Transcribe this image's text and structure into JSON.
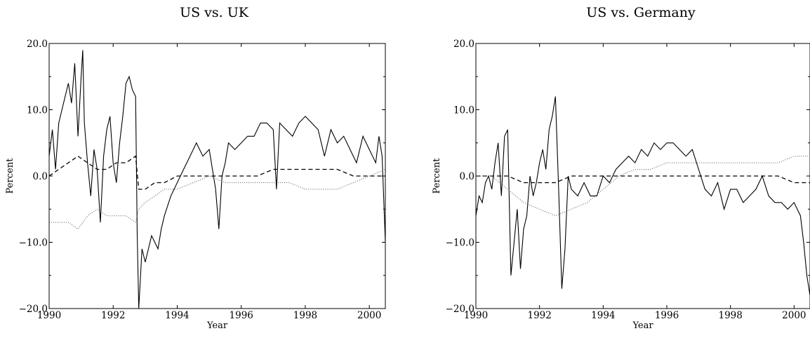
{
  "chart_data": [
    {
      "type": "line",
      "title": "US vs. UK",
      "xlabel": "Year",
      "ylabel": "Percent",
      "xlim": [
        1990,
        2000.5
      ],
      "ylim": [
        -20,
        20
      ],
      "xticks": [
        1990,
        1992,
        1994,
        1996,
        1998,
        2000
      ],
      "xtick_labels": [
        "1990",
        "1992",
        "1994",
        "1996",
        "1998",
        "2000"
      ],
      "yticks": [
        -20,
        -10,
        0,
        10,
        20
      ],
      "ytick_labels": [
        "−20.0",
        "−10.0",
        "0.0",
        "10.0",
        "20.0"
      ],
      "grid": false,
      "series": [
        {
          "style": "solid",
          "x": [
            1990.0,
            1990.1,
            1990.2,
            1990.3,
            1990.5,
            1990.6,
            1990.7,
            1990.8,
            1990.9,
            1991.0,
            1991.05,
            1991.1,
            1991.2,
            1991.3,
            1991.4,
            1991.5,
            1991.6,
            1991.7,
            1991.8,
            1991.9,
            1992.0,
            1992.1,
            1992.2,
            1992.3,
            1992.4,
            1992.5,
            1992.6,
            1992.7,
            1992.75,
            1992.8,
            1992.9,
            1993.0,
            1993.2,
            1993.4,
            1993.5,
            1993.6,
            1993.8,
            1994.0,
            1994.2,
            1994.4,
            1994.6,
            1994.8,
            1995.0,
            1995.2,
            1995.3,
            1995.4,
            1995.5,
            1995.6,
            1995.8,
            1996.0,
            1996.2,
            1996.4,
            1996.6,
            1996.8,
            1997.0,
            1997.1,
            1997.2,
            1997.4,
            1997.6,
            1997.8,
            1998.0,
            1998.2,
            1998.4,
            1998.6,
            1998.8,
            1999.0,
            1999.2,
            1999.4,
            1999.6,
            1999.8,
            2000.0,
            2000.2,
            2000.3,
            2000.4,
            2000.5
          ],
          "y": [
            3,
            7,
            1,
            8,
            12,
            14,
            11,
            17,
            6,
            15,
            19,
            8,
            2,
            -3,
            4,
            1,
            -7,
            3,
            7,
            9,
            2,
            -1,
            5,
            9,
            14,
            15,
            13,
            12,
            -9,
            -20,
            -11,
            -13,
            -9,
            -11,
            -8,
            -6,
            -3,
            -1,
            1,
            3,
            5,
            3,
            4,
            -2,
            -8,
            0,
            2,
            5,
            4,
            5,
            6,
            6,
            8,
            8,
            7,
            -2,
            8,
            7,
            6,
            8,
            9,
            8,
            7,
            3,
            7,
            5,
            6,
            4,
            2,
            6,
            4,
            2,
            6,
            3,
            -10
          ]
        },
        {
          "style": "dashed",
          "x": [
            1990.0,
            1990.3,
            1990.6,
            1990.9,
            1991.2,
            1991.5,
            1991.8,
            1992.1,
            1992.4,
            1992.7,
            1992.8,
            1993.0,
            1993.3,
            1993.6,
            1994.0,
            1994.5,
            1995.0,
            1995.5,
            1996.0,
            1996.5,
            1997.0,
            1997.5,
            1998.0,
            1998.5,
            1999.0,
            1999.5,
            2000.0,
            2000.5
          ],
          "y": [
            0,
            1,
            2,
            3,
            2,
            1,
            1,
            2,
            2,
            3,
            -2,
            -2,
            -1,
            -1,
            0,
            0,
            0,
            0,
            0,
            0,
            1,
            1,
            1,
            1,
            1,
            0,
            0,
            0
          ]
        },
        {
          "style": "dotted",
          "x": [
            1990.0,
            1990.3,
            1990.6,
            1990.9,
            1991.2,
            1991.5,
            1991.8,
            1992.1,
            1992.4,
            1992.7,
            1992.8,
            1993.0,
            1993.3,
            1993.6,
            1994.0,
            1994.5,
            1995.0,
            1995.5,
            1996.0,
            1996.5,
            1997.0,
            1997.5,
            1998.0,
            1998.5,
            1999.0,
            1999.5,
            2000.0,
            2000.5
          ],
          "y": [
            -7,
            -7,
            -7,
            -8,
            -6,
            -5,
            -6,
            -6,
            -6,
            -7,
            -5,
            -4,
            -3,
            -2,
            -2,
            -1,
            0,
            -1,
            -1,
            -1,
            -1,
            -1,
            -2,
            -2,
            -2,
            -1,
            0,
            1
          ]
        }
      ]
    },
    {
      "type": "line",
      "title": "US vs. Germany",
      "xlabel": "Year",
      "ylabel": "Percent",
      "xlim": [
        1990,
        2000.5
      ],
      "ylim": [
        -20,
        20
      ],
      "xticks": [
        1990,
        1992,
        1994,
        1996,
        1998,
        2000
      ],
      "xtick_labels": [
        "1990",
        "1992",
        "1994",
        "1996",
        "1998",
        "2000"
      ],
      "yticks": [
        -20,
        -10,
        0,
        10,
        20
      ],
      "ytick_labels": [
        "−20.0",
        "−10.0",
        "0.0",
        "10.0",
        "20.0"
      ],
      "grid": false,
      "series": [
        {
          "style": "solid",
          "x": [
            1990.0,
            1990.1,
            1990.2,
            1990.3,
            1990.4,
            1990.5,
            1990.6,
            1990.7,
            1990.8,
            1990.9,
            1991.0,
            1991.1,
            1991.2,
            1991.3,
            1991.4,
            1991.5,
            1991.6,
            1991.7,
            1991.8,
            1991.9,
            1992.0,
            1992.1,
            1992.2,
            1992.3,
            1992.4,
            1992.5,
            1992.6,
            1992.7,
            1992.8,
            1992.9,
            1993.0,
            1993.2,
            1993.4,
            1993.6,
            1993.8,
            1994.0,
            1994.2,
            1994.4,
            1994.6,
            1994.8,
            1995.0,
            1995.2,
            1995.4,
            1995.6,
            1995.8,
            1996.0,
            1996.2,
            1996.4,
            1996.6,
            1996.8,
            1997.0,
            1997.2,
            1997.4,
            1997.6,
            1997.8,
            1998.0,
            1998.2,
            1998.4,
            1998.6,
            1998.8,
            1999.0,
            1999.2,
            1999.4,
            1999.6,
            1999.8,
            2000.0,
            2000.2,
            2000.3,
            2000.4,
            2000.5
          ],
          "y": [
            -6,
            -3,
            -4,
            -1,
            0,
            -2,
            2,
            5,
            -3,
            6,
            7,
            -15,
            -10,
            -5,
            -14,
            -8,
            -6,
            0,
            -3,
            -1,
            2,
            4,
            1,
            7,
            9,
            12,
            -2,
            -17,
            -11,
            0,
            -2,
            -3,
            -1,
            -3,
            -3,
            0,
            -1,
            1,
            2,
            3,
            2,
            4,
            3,
            5,
            4,
            5,
            5,
            4,
            3,
            4,
            1,
            -2,
            -3,
            -1,
            -5,
            -2,
            -2,
            -4,
            -3,
            -2,
            0,
            -3,
            -4,
            -4,
            -5,
            -4,
            -6,
            -10,
            -15,
            -18
          ]
        },
        {
          "style": "dashed",
          "x": [
            1990.0,
            1990.5,
            1991.0,
            1991.5,
            1992.0,
            1992.5,
            1993.0,
            1993.5,
            1994.0,
            1994.5,
            1995.0,
            1995.5,
            1996.0,
            1996.5,
            1997.0,
            1997.5,
            1998.0,
            1998.5,
            1999.0,
            1999.5,
            2000.0,
            2000.5
          ],
          "y": [
            0,
            0,
            0,
            -1,
            -1,
            -1,
            0,
            0,
            0,
            0,
            0,
            0,
            0,
            0,
            0,
            0,
            0,
            0,
            0,
            0,
            -1,
            -1
          ]
        },
        {
          "style": "dotted",
          "x": [
            1990.0,
            1990.5,
            1991.0,
            1991.5,
            1992.0,
            1992.5,
            1993.0,
            1993.5,
            1994.0,
            1994.5,
            1995.0,
            1995.5,
            1996.0,
            1996.5,
            1997.0,
            1997.5,
            1998.0,
            1998.5,
            1999.0,
            1999.5,
            2000.0,
            2000.5
          ],
          "y": [
            0,
            0,
            -2,
            -4,
            -5,
            -6,
            -5,
            -4,
            -2,
            0,
            1,
            1,
            2,
            2,
            2,
            2,
            2,
            2,
            2,
            2,
            3,
            3
          ]
        }
      ]
    }
  ]
}
